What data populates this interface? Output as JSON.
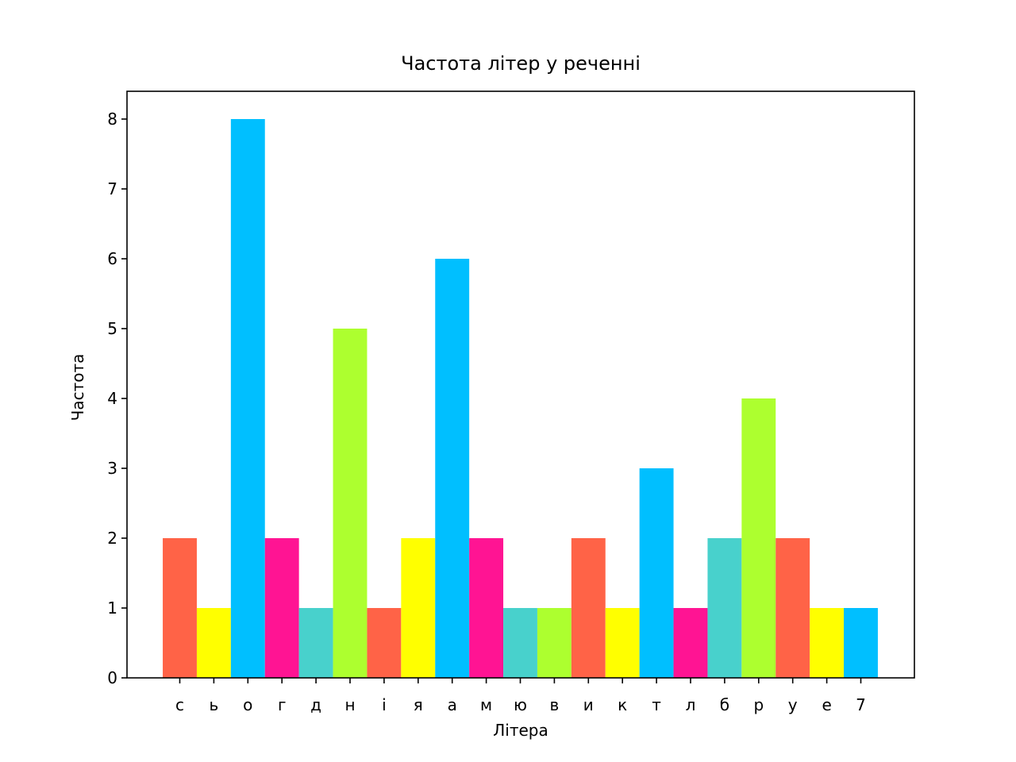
{
  "chart_data": {
    "type": "bar",
    "title": "Частота літер у реченні",
    "xlabel": "Літера",
    "ylabel": "Частота",
    "categories": [
      "с",
      "ь",
      "о",
      "г",
      "д",
      "н",
      "і",
      "я",
      "а",
      "м",
      "ю",
      "в",
      "и",
      "к",
      "т",
      "л",
      "б",
      "р",
      "у",
      "е",
      "7"
    ],
    "values": [
      2,
      1,
      8,
      2,
      1,
      5,
      1,
      2,
      6,
      2,
      1,
      1,
      2,
      1,
      3,
      1,
      2,
      4,
      2,
      1,
      1
    ],
    "colors": [
      "#ff6347",
      "#ffff00",
      "#00bfff",
      "#ff1493",
      "#48d1cc",
      "#adff2f",
      "#ff6347",
      "#ffff00",
      "#00bfff",
      "#ff1493",
      "#48d1cc",
      "#adff2f",
      "#ff6347",
      "#ffff00",
      "#00bfff",
      "#ff1493",
      "#48d1cc",
      "#adff2f",
      "#ff6347",
      "#ffff00",
      "#00bfff"
    ],
    "ylim": [
      0,
      8.4
    ],
    "yticks": [
      0,
      1,
      2,
      3,
      4,
      5,
      6,
      7,
      8
    ],
    "grid": false,
    "legend": "none"
  }
}
